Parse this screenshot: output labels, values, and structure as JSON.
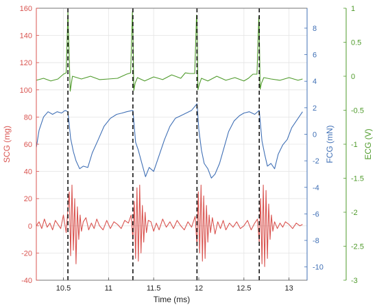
{
  "chart_data": {
    "type": "line",
    "xlabel": "Time (ms)",
    "xlim": [
      10.2,
      13.2
    ],
    "x_ticks": [
      "10.5",
      "11",
      "11.5",
      "12",
      "12.5",
      "13"
    ],
    "x_tick_values": [
      10.5,
      11,
      11.5,
      12,
      12.5,
      13
    ],
    "grid": true,
    "axes": {
      "scg": {
        "label": "SCG (mg)",
        "position": "left",
        "color": "#d9534f",
        "ylim": [
          -40,
          160
        ],
        "ticks": [
          "160",
          "140",
          "120",
          "100",
          "80",
          "60",
          "40",
          "20",
          "0",
          "-20",
          "-40"
        ],
        "tick_values": [
          160,
          140,
          120,
          100,
          80,
          60,
          40,
          20,
          0,
          -20,
          -40
        ]
      },
      "fcg": {
        "label": "FCG (mN)",
        "position": "inner-right",
        "color": "#3f6fb5",
        "ylim": [
          -11,
          9.5
        ],
        "ticks": [
          "8",
          "6",
          "4",
          "2",
          "0",
          "-2",
          "-4",
          "-6",
          "-8",
          "-10"
        ],
        "tick_values": [
          8,
          6,
          4,
          2,
          0,
          -2,
          -4,
          -6,
          -8,
          -10
        ]
      },
      "ecg": {
        "label": "ECG (V)",
        "position": "outer-right",
        "color": "#4e9a2a",
        "ylim": [
          -3,
          1
        ],
        "ticks": [
          "1",
          "0.5",
          "0",
          "-0.5",
          "-1",
          "-1.5",
          "-2",
          "-2.5",
          "-3"
        ],
        "tick_values": [
          1,
          0.5,
          0,
          -0.5,
          -1,
          -1.5,
          -2,
          -2.5,
          -3
        ]
      }
    },
    "r_peak_markers": {
      "style": "dashed",
      "color": "#111111",
      "x": [
        10.55,
        11.27,
        11.98,
        12.67
      ]
    },
    "series": [
      {
        "axis": "ecg",
        "color": "#4e9a2a",
        "x": [
          10.2,
          10.28,
          10.36,
          10.44,
          10.5,
          10.53,
          10.55,
          10.56,
          10.575,
          10.6,
          10.7,
          10.8,
          10.9,
          11.0,
          11.1,
          11.15,
          11.2,
          11.245,
          11.265,
          11.27,
          11.28,
          11.295,
          11.32,
          11.4,
          11.5,
          11.6,
          11.7,
          11.8,
          11.85,
          11.9,
          11.955,
          11.975,
          11.98,
          11.99,
          12.005,
          12.03,
          12.1,
          12.2,
          12.3,
          12.4,
          12.5,
          12.55,
          12.6,
          12.645,
          12.665,
          12.67,
          12.68,
          12.695,
          12.72,
          12.8,
          12.9,
          13.0,
          13.1,
          13.15
        ],
        "values": [
          -0.06,
          -0.03,
          -0.07,
          -0.04,
          0.03,
          0.05,
          0.94,
          0.5,
          -0.22,
          0.0,
          -0.04,
          0.0,
          -0.05,
          -0.04,
          -0.03,
          0.0,
          0.03,
          0.05,
          0.95,
          0.7,
          -0.21,
          -0.1,
          -0.02,
          -0.07,
          -0.01,
          -0.05,
          0.02,
          -0.03,
          0.05,
          0.04,
          0.04,
          0.9,
          0.8,
          -0.2,
          -0.12,
          -0.03,
          -0.07,
          0.0,
          -0.06,
          -0.02,
          -0.07,
          -0.03,
          0.03,
          0.03,
          0.88,
          0.7,
          -0.19,
          -0.1,
          -0.02,
          -0.04,
          -0.06,
          -0.02,
          -0.06,
          -0.04
        ]
      },
      {
        "axis": "fcg",
        "color": "#3f6fb5",
        "x": [
          10.2,
          10.23,
          10.28,
          10.33,
          10.38,
          10.43,
          10.48,
          10.52,
          10.55,
          10.58,
          10.61,
          10.64,
          10.68,
          10.72,
          10.77,
          10.82,
          10.88,
          10.95,
          11.02,
          11.09,
          11.15,
          11.2,
          11.27,
          11.3,
          11.33,
          11.37,
          11.41,
          11.45,
          11.5,
          11.56,
          11.62,
          11.68,
          11.74,
          11.8,
          11.86,
          11.92,
          11.98,
          12.0,
          12.03,
          12.06,
          12.1,
          12.14,
          12.18,
          12.23,
          12.28,
          12.33,
          12.39,
          12.45,
          12.5,
          12.56,
          12.62,
          12.67,
          12.7,
          12.73,
          12.76,
          12.8,
          12.84,
          12.88,
          12.93,
          12.98,
          13.03,
          13.08,
          13.15
        ],
        "values": [
          -1.0,
          0.3,
          1.3,
          1.7,
          1.5,
          1.7,
          1.6,
          1.8,
          1.7,
          -0.3,
          -1.3,
          -2.0,
          -2.6,
          -2.4,
          -2.5,
          -1.4,
          -0.5,
          0.6,
          1.2,
          1.5,
          1.6,
          1.7,
          1.8,
          -0.6,
          -1.2,
          -2.2,
          -3.2,
          -2.5,
          -2.8,
          -1.6,
          -0.4,
          0.6,
          1.2,
          1.4,
          1.6,
          1.8,
          2.3,
          0.4,
          -1.2,
          -2.2,
          -2.6,
          -3.3,
          -3.0,
          -2.2,
          -1.0,
          0.2,
          1.0,
          1.4,
          1.6,
          1.7,
          1.5,
          1.8,
          -0.5,
          -1.5,
          -2.4,
          -2.2,
          -2.6,
          -1.5,
          -0.8,
          -0.4,
          0.5,
          1.0,
          1.7
        ]
      },
      {
        "axis": "scg",
        "color": "#d9534f",
        "x": [
          10.2,
          10.23,
          10.26,
          10.29,
          10.32,
          10.35,
          10.38,
          10.41,
          10.44,
          10.47,
          10.5,
          10.53,
          10.55,
          10.565,
          10.58,
          10.595,
          10.61,
          10.625,
          10.64,
          10.655,
          10.67,
          10.685,
          10.7,
          10.72,
          10.75,
          10.78,
          10.81,
          10.84,
          10.87,
          10.9,
          10.94,
          10.98,
          11.02,
          11.06,
          11.1,
          11.14,
          11.18,
          11.22,
          11.25,
          11.27,
          11.285,
          11.3,
          11.315,
          11.33,
          11.345,
          11.36,
          11.375,
          11.39,
          11.405,
          11.42,
          11.44,
          11.47,
          11.5,
          11.53,
          11.56,
          11.6,
          11.64,
          11.68,
          11.72,
          11.76,
          11.8,
          11.84,
          11.88,
          11.92,
          11.96,
          11.98,
          11.995,
          12.01,
          12.025,
          12.04,
          12.055,
          12.07,
          12.085,
          12.1,
          12.115,
          12.13,
          12.15,
          12.18,
          12.21,
          12.24,
          12.27,
          12.3,
          12.34,
          12.38,
          12.42,
          12.46,
          12.5,
          12.54,
          12.58,
          12.62,
          12.65,
          12.67,
          12.685,
          12.7,
          12.715,
          12.73,
          12.745,
          12.76,
          12.775,
          12.79,
          12.805,
          12.82,
          12.84,
          12.87,
          12.9,
          12.93,
          12.96,
          13.0,
          13.04,
          13.08,
          13.12,
          13.15
        ],
        "values": [
          0,
          3,
          -2,
          5,
          -1,
          2,
          -3,
          4,
          1,
          -2,
          8,
          -5,
          12,
          25,
          -22,
          30,
          -18,
          20,
          -28,
          14,
          -10,
          8,
          -4,
          3,
          6,
          -3,
          2,
          -2,
          5,
          0,
          -3,
          4,
          -2,
          3,
          1,
          -2,
          4,
          2,
          8,
          -10,
          18,
          -24,
          28,
          -26,
          30,
          -20,
          15,
          -12,
          10,
          -5,
          4,
          3,
          -4,
          2,
          -3,
          5,
          -1,
          3,
          -2,
          4,
          0,
          -3,
          3,
          -1,
          7,
          -15,
          25,
          -20,
          30,
          -26,
          22,
          -24,
          15,
          -12,
          8,
          -5,
          6,
          -6,
          3,
          -2,
          4,
          -3,
          2,
          -1,
          3,
          -2,
          0,
          4,
          -3,
          2,
          5,
          -12,
          20,
          -28,
          30,
          -30,
          26,
          -24,
          16,
          -10,
          8,
          -4,
          3,
          -2,
          2,
          -1,
          3,
          1,
          -2,
          2,
          0,
          1
        ]
      }
    ]
  }
}
